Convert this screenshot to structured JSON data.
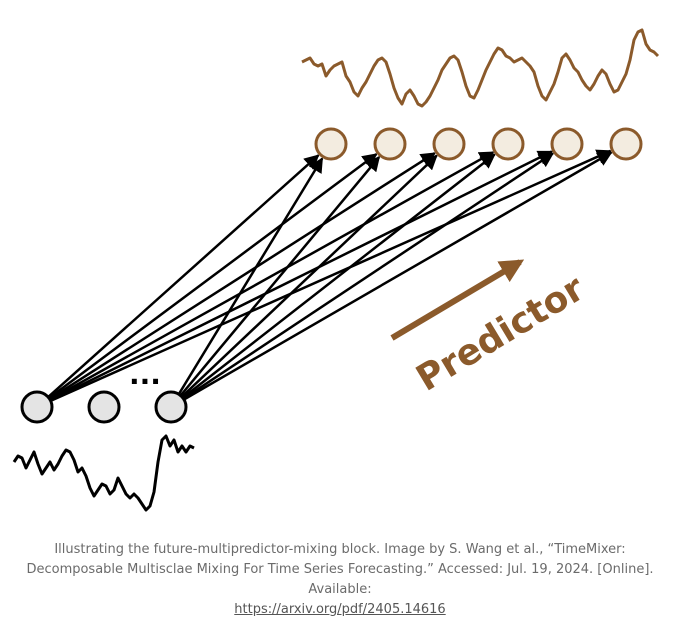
{
  "diagram": {
    "predictor_label": "Predictor",
    "ellipsis": "...",
    "colors": {
      "brown": "#8B5A2B",
      "input_node_fill": "#e4e4e4",
      "output_node_fill": "#f3ece0",
      "line": "#000000"
    },
    "input_nodes": 3,
    "output_nodes": 6
  },
  "caption": {
    "text": "Illustrating the future-multipredictor-mixing block. Image by S. Wang et al., “TimeMixer: Decomposable Multisclae Mixing For Time Series Forecasting.” Accessed: Jul. 19, 2024. [Online]. Available:",
    "link_text": "https://arxiv.org/pdf/2405.14616"
  }
}
